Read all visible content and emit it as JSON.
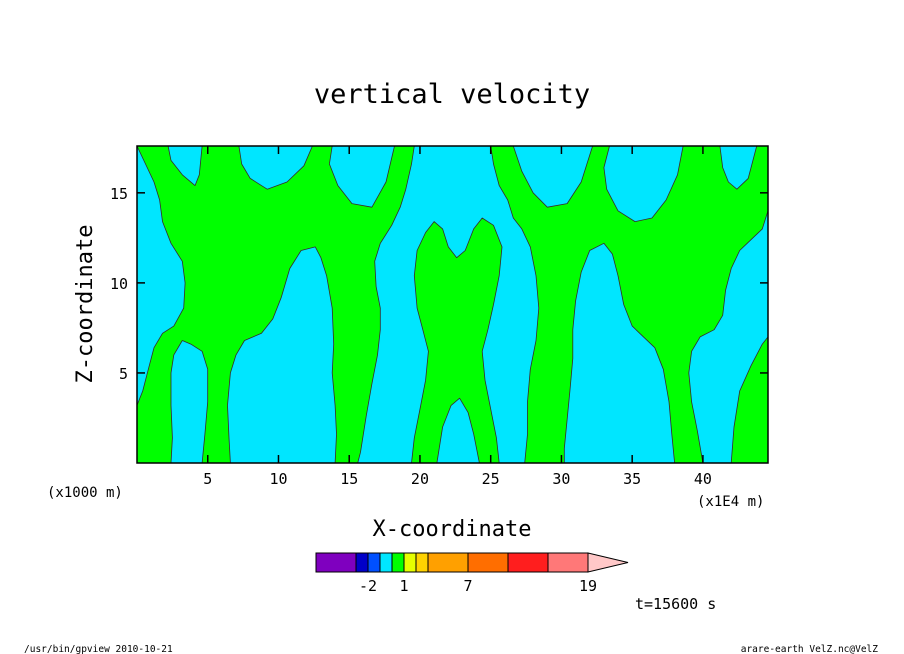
{
  "chart_data": {
    "type": "heatmap",
    "title": "vertical velocity",
    "xlabel": "X-coordinate",
    "ylabel": "Z-coordinate",
    "x_units_left": "(x1000 m)",
    "x_units_right": "(x1E4 m)",
    "x_ticks": [
      5,
      10,
      15,
      20,
      25,
      30,
      35,
      40
    ],
    "y_ticks": [
      5,
      10,
      15
    ],
    "xlim": [
      0,
      44.6
    ],
    "ylim": [
      0,
      17.6
    ],
    "time_label": "t=15600 s",
    "footer_left": "/usr/bin/gpview  2010-10-21",
    "footer_right": "arare-earth_VelZ.nc@VelZ",
    "colorbar": {
      "labels": [
        {
          "label": "-2",
          "index": 2
        },
        {
          "label": "1",
          "index": 5
        },
        {
          "label": "7",
          "index": 8
        },
        {
          "label": "19",
          "index": 11
        }
      ],
      "colors": [
        "#7f00bf",
        "#0000c8",
        "#0050ff",
        "#00e6ff",
        "#00ff00",
        "#e6ff00",
        "#ffd200",
        "#ffa000",
        "#ff6e00",
        "#ff1e1e",
        "#ff7878",
        "#ffc8c8"
      ],
      "widths": [
        1,
        0.3,
        0.3,
        0.3,
        0.3,
        0.3,
        0.3,
        1,
        1,
        1,
        1,
        1
      ]
    },
    "field_colors": {
      "positive": "#00ff00",
      "negative": "#00e6ff"
    },
    "green_regions": [
      {
        "id": "g1",
        "pts": [
          [
            0,
            0
          ],
          [
            0,
            3.2
          ],
          [
            0.4,
            4
          ],
          [
            0.8,
            5.2
          ],
          [
            1.2,
            6.4
          ],
          [
            1.8,
            7.2
          ],
          [
            2.6,
            7.6
          ],
          [
            3.3,
            8.6
          ],
          [
            3.4,
            10
          ],
          [
            3.2,
            11.2
          ],
          [
            2.4,
            12.2
          ],
          [
            1.8,
            13.4
          ],
          [
            1.6,
            14.6
          ],
          [
            1.2,
            15.6
          ],
          [
            0.6,
            16.6
          ],
          [
            0,
            17.6
          ],
          [
            2.2,
            17.6
          ],
          [
            2.4,
            16.8
          ],
          [
            3.2,
            16
          ],
          [
            4.1,
            15.4
          ],
          [
            4.4,
            16
          ],
          [
            4.6,
            17.6
          ],
          [
            7.2,
            17.6
          ],
          [
            7.4,
            16.6
          ],
          [
            8,
            15.8
          ],
          [
            9.2,
            15.2
          ],
          [
            10.6,
            15.6
          ],
          [
            11.8,
            16.5
          ],
          [
            12.4,
            17.6
          ],
          [
            13.8,
            17.6
          ],
          [
            13.6,
            16.6
          ],
          [
            14.2,
            15.4
          ],
          [
            15.2,
            14.4
          ],
          [
            16.6,
            14.2
          ],
          [
            17.6,
            15.6
          ],
          [
            18.2,
            17.6
          ],
          [
            19.6,
            17.6
          ],
          [
            19.4,
            16.6
          ],
          [
            19.0,
            15.2
          ],
          [
            18.6,
            14.2
          ],
          [
            18.0,
            13.2
          ],
          [
            17.2,
            12.2
          ],
          [
            16.8,
            11.2
          ],
          [
            16.9,
            9.8
          ],
          [
            17.2,
            8.6
          ],
          [
            17.2,
            7.4
          ],
          [
            17.0,
            6.0
          ],
          [
            16.6,
            4.4
          ],
          [
            16.2,
            2.6
          ],
          [
            15.8,
            0.6
          ],
          [
            15.6,
            0
          ],
          [
            14.0,
            0
          ],
          [
            14.1,
            1.6
          ],
          [
            14.0,
            3.2
          ],
          [
            13.8,
            5.0
          ],
          [
            13.9,
            6.6
          ],
          [
            13.8,
            8.6
          ],
          [
            13.4,
            10.4
          ],
          [
            13.0,
            11.4
          ],
          [
            12.6,
            12.0
          ],
          [
            11.6,
            11.8
          ],
          [
            10.8,
            10.8
          ],
          [
            10.2,
            9.2
          ],
          [
            9.6,
            8.0
          ],
          [
            8.8,
            7.2
          ],
          [
            7.6,
            6.8
          ],
          [
            7.0,
            6.0
          ],
          [
            6.6,
            5.0
          ],
          [
            6.4,
            3.2
          ],
          [
            6.5,
            1.4
          ],
          [
            6.6,
            0
          ],
          [
            4.6,
            0
          ],
          [
            4.8,
            1.6
          ],
          [
            5.0,
            3.4
          ],
          [
            5.0,
            5.2
          ],
          [
            4.6,
            6.2
          ],
          [
            3.8,
            6.6
          ],
          [
            3.2,
            6.8
          ],
          [
            2.6,
            6.0
          ],
          [
            2.4,
            5.0
          ],
          [
            2.4,
            3.2
          ],
          [
            2.5,
            1.4
          ],
          [
            2.4,
            0
          ]
        ]
      },
      {
        "id": "g2",
        "pts": [
          [
            19.4,
            0
          ],
          [
            19.6,
            1.4
          ],
          [
            20.0,
            3.0
          ],
          [
            20.4,
            4.6
          ],
          [
            20.6,
            6.2
          ],
          [
            20.2,
            7.4
          ],
          [
            19.8,
            8.6
          ],
          [
            19.6,
            10.4
          ],
          [
            19.8,
            11.8
          ],
          [
            20.4,
            12.8
          ],
          [
            21.0,
            13.4
          ],
          [
            21.6,
            13.0
          ],
          [
            22.0,
            12.0
          ],
          [
            22.6,
            11.4
          ],
          [
            23.2,
            11.8
          ],
          [
            23.8,
            13.0
          ],
          [
            24.4,
            13.6
          ],
          [
            25.2,
            13.2
          ],
          [
            25.8,
            12.0
          ],
          [
            25.6,
            10.4
          ],
          [
            25.2,
            8.8
          ],
          [
            24.8,
            7.4
          ],
          [
            24.4,
            6.2
          ],
          [
            24.6,
            4.6
          ],
          [
            25.0,
            3.0
          ],
          [
            25.4,
            1.4
          ],
          [
            25.6,
            0
          ],
          [
            24.2,
            0
          ],
          [
            23.8,
            1.6
          ],
          [
            23.4,
            2.8
          ],
          [
            22.8,
            3.6
          ],
          [
            22.2,
            3.2
          ],
          [
            21.6,
            2.0
          ],
          [
            21.2,
            0
          ]
        ]
      },
      {
        "id": "g3",
        "pts": [
          [
            27.4,
            0
          ],
          [
            27.6,
            1.6
          ],
          [
            27.6,
            3.4
          ],
          [
            27.8,
            5.2
          ],
          [
            28.2,
            6.8
          ],
          [
            28.4,
            8.6
          ],
          [
            28.2,
            10.4
          ],
          [
            27.8,
            12.0
          ],
          [
            27.2,
            13.0
          ],
          [
            26.6,
            13.6
          ],
          [
            26.2,
            14.6
          ],
          [
            25.6,
            15.4
          ],
          [
            25.2,
            16.6
          ],
          [
            25.0,
            17.6
          ],
          [
            26.6,
            17.6
          ],
          [
            27.2,
            16.2
          ],
          [
            28.0,
            15.0
          ],
          [
            29.0,
            14.2
          ],
          [
            30.4,
            14.4
          ],
          [
            31.4,
            15.6
          ],
          [
            32.2,
            17.6
          ],
          [
            33.4,
            17.6
          ],
          [
            33.0,
            16.4
          ],
          [
            33.2,
            15.2
          ],
          [
            34.0,
            14.0
          ],
          [
            35.2,
            13.4
          ],
          [
            36.4,
            13.6
          ],
          [
            37.4,
            14.6
          ],
          [
            38.2,
            16.0
          ],
          [
            38.6,
            17.6
          ],
          [
            41.2,
            17.6
          ],
          [
            41.4,
            16.4
          ],
          [
            41.8,
            15.6
          ],
          [
            42.4,
            15.2
          ],
          [
            43.2,
            15.8
          ],
          [
            43.8,
            17.6
          ],
          [
            44.6,
            17.6
          ],
          [
            44.6,
            14.0
          ],
          [
            44.2,
            13.0
          ],
          [
            43.4,
            12.4
          ],
          [
            42.6,
            11.8
          ],
          [
            42.0,
            10.8
          ],
          [
            41.6,
            9.6
          ],
          [
            41.4,
            8.2
          ],
          [
            40.8,
            7.4
          ],
          [
            39.8,
            7.0
          ],
          [
            39.2,
            6.2
          ],
          [
            39.0,
            5.0
          ],
          [
            39.2,
            3.4
          ],
          [
            39.6,
            1.8
          ],
          [
            40.0,
            0
          ],
          [
            38.0,
            0
          ],
          [
            37.8,
            1.6
          ],
          [
            37.6,
            3.4
          ],
          [
            37.2,
            5.2
          ],
          [
            36.6,
            6.4
          ],
          [
            35.8,
            7.0
          ],
          [
            35.0,
            7.6
          ],
          [
            34.4,
            8.8
          ],
          [
            34.0,
            10.4
          ],
          [
            33.6,
            11.6
          ],
          [
            33.0,
            12.2
          ],
          [
            32.0,
            11.8
          ],
          [
            31.4,
            10.6
          ],
          [
            31.0,
            9.0
          ],
          [
            30.8,
            7.4
          ],
          [
            30.8,
            5.8
          ],
          [
            30.6,
            4.0
          ],
          [
            30.4,
            2.4
          ],
          [
            30.2,
            0.8
          ],
          [
            30.2,
            0
          ]
        ]
      },
      {
        "id": "g4",
        "pts": [
          [
            42.0,
            0
          ],
          [
            42.2,
            2.0
          ],
          [
            42.6,
            4.0
          ],
          [
            43.4,
            5.4
          ],
          [
            44.2,
            6.6
          ],
          [
            44.6,
            7.0
          ],
          [
            44.6,
            0
          ]
        ]
      }
    ]
  }
}
